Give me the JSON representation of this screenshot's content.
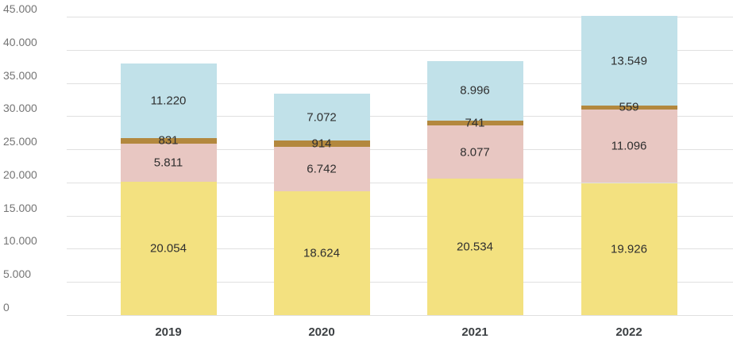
{
  "chart_data": {
    "type": "bar",
    "stacked": true,
    "title": "",
    "xlabel": "",
    "ylabel": "",
    "grid": true,
    "legend_position": "none",
    "categories": [
      "2019",
      "2020",
      "2021",
      "2022"
    ],
    "series": [
      {
        "name": "yellow-bottom-segment",
        "color": "#f3e180",
        "values": [
          20054,
          18624,
          20534,
          19926
        ],
        "labels": [
          "20.054",
          "18.624",
          "20.534",
          "19.926"
        ]
      },
      {
        "name": "pink-segment",
        "color": "#e8c7c2",
        "values": [
          5811,
          6742,
          8077,
          11096
        ],
        "labels": [
          "5.811",
          "6.742",
          "8.077",
          "11.096"
        ]
      },
      {
        "name": "brown-thin-segment",
        "color": "#b3883e",
        "values": [
          831,
          914,
          741,
          559
        ],
        "labels": [
          "831",
          "914",
          "741",
          "559"
        ]
      },
      {
        "name": "blue-top-segment",
        "color": "#c1e1e9",
        "values": [
          11220,
          7072,
          8996,
          13549
        ],
        "labels": [
          "11.220",
          "7.072",
          "8.996",
          "13.549"
        ]
      }
    ],
    "y_axis": {
      "min": 0,
      "max": 45000,
      "tick_step": 5000,
      "tick_labels": [
        "0",
        "5.000",
        "10.000",
        "15.000",
        "20.000",
        "25.000",
        "30.000",
        "35.000",
        "40.000",
        "45.000"
      ]
    }
  },
  "colors": {
    "background": "#ffffff",
    "gridline": "#e0e0e0",
    "y_tick_text": "#757575",
    "x_tick_text": "#3c4043",
    "value_label_text": "#2f2f2f"
  }
}
